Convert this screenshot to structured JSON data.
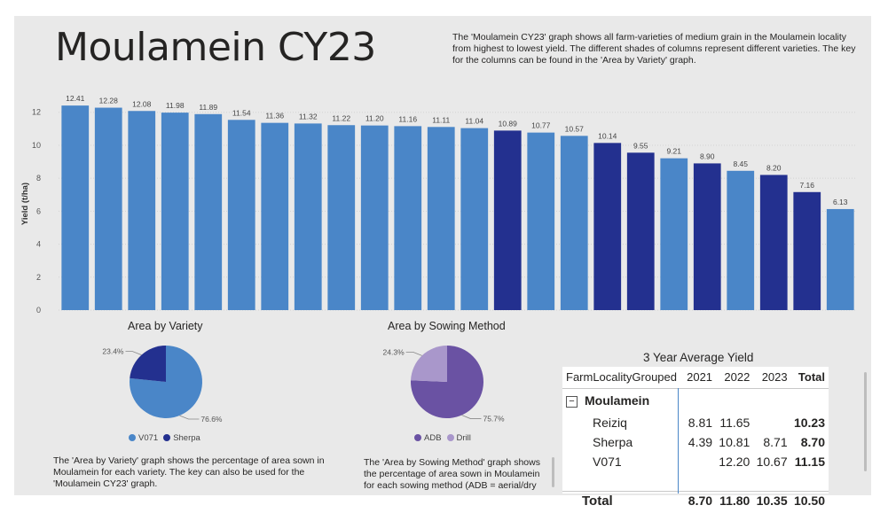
{
  "dashboard": {
    "title": "Moulamein CY23",
    "description": "The 'Moulamein CY23' graph shows all farm-varieties of medium grain in the Moulamein locality from highest to lowest yield. The different shades of columns represent different varieties. The key for the columns can be found in the 'Area by Variety' graph."
  },
  "colors": {
    "light": "#4a86c8",
    "dark": "#23308f",
    "adb": "#6a52a3",
    "drill": "#a997cb"
  },
  "chart_data": [
    {
      "type": "bar",
      "title": "Moulamein CY23",
      "ylabel": "Yield (t/ha)",
      "xlabel": "",
      "ylim": [
        0,
        12.9
      ],
      "yticks": [
        0,
        2,
        4,
        6,
        8,
        10,
        12
      ],
      "values": [
        12.41,
        12.28,
        12.08,
        11.98,
        11.89,
        11.54,
        11.36,
        11.32,
        11.22,
        11.2,
        11.16,
        11.11,
        11.04,
        10.89,
        10.77,
        10.57,
        10.14,
        9.55,
        9.21,
        8.9,
        8.45,
        8.2,
        7.16,
        6.13
      ],
      "labels": [
        "12.41",
        "12.28",
        "12.08",
        "11.98",
        "11.89",
        "11.54",
        "11.36",
        "11.32",
        "11.22",
        "11.20",
        "11.16",
        "11.11",
        "11.04",
        "10.89",
        "10.77",
        "10.57",
        "10.14",
        "9.55",
        "9.21",
        "8.90",
        "8.45",
        "8.20",
        "7.16",
        "6.13"
      ],
      "variety": [
        "V071",
        "V071",
        "V071",
        "V071",
        "V071",
        "V071",
        "V071",
        "V071",
        "V071",
        "V071",
        "V071",
        "V071",
        "V071",
        "Sherpa",
        "V071",
        "V071",
        "Sherpa",
        "Sherpa",
        "V071",
        "Sherpa",
        "V071",
        "Sherpa",
        "Sherpa",
        "V071"
      ],
      "grid": true
    },
    {
      "type": "pie",
      "title": "Area by Variety",
      "slices": [
        {
          "name": "V071",
          "value": 76.6,
          "label": "76.6%"
        },
        {
          "name": "Sherpa",
          "value": 23.4,
          "label": "23.4%"
        }
      ]
    },
    {
      "type": "pie",
      "title": "Area by Sowing Method",
      "slices": [
        {
          "name": "ADB",
          "value": 75.7,
          "label": "75.7%"
        },
        {
          "name": "Drill",
          "value": 24.3,
          "label": "24.3%"
        }
      ]
    },
    {
      "type": "table",
      "title": "3 Year Average Yield",
      "columns": [
        "FarmLocalityGrouped",
        "2021",
        "2022",
        "2023",
        "Total"
      ],
      "group": "Moulamein",
      "expand_symbol": "−",
      "rows": [
        {
          "name": "Reiziq",
          "y2021": "8.81",
          "y2022": "11.65",
          "y2023": "",
          "total": "10.23"
        },
        {
          "name": "Sherpa",
          "y2021": "4.39",
          "y2022": "10.81",
          "y2023": "8.71",
          "total": "8.70"
        },
        {
          "name": "V071",
          "y2021": "",
          "y2022": "12.20",
          "y2023": "10.67",
          "total": "11.15"
        }
      ],
      "totals": {
        "name": "Total",
        "y2021": "8.70",
        "y2022": "11.80",
        "y2023": "10.35",
        "total": "10.50"
      }
    }
  ],
  "pie_notes": {
    "variety": "The 'Area by Variety' graph shows the percentage of area sown in Moulamein for each variety. The key can also be used for the 'Moulamein CY23' graph.",
    "sowing": "The 'Area by Sowing Method' graph shows the percentage of area sown in Moulamein for each sowing method (ADB = aerial/dry"
  }
}
